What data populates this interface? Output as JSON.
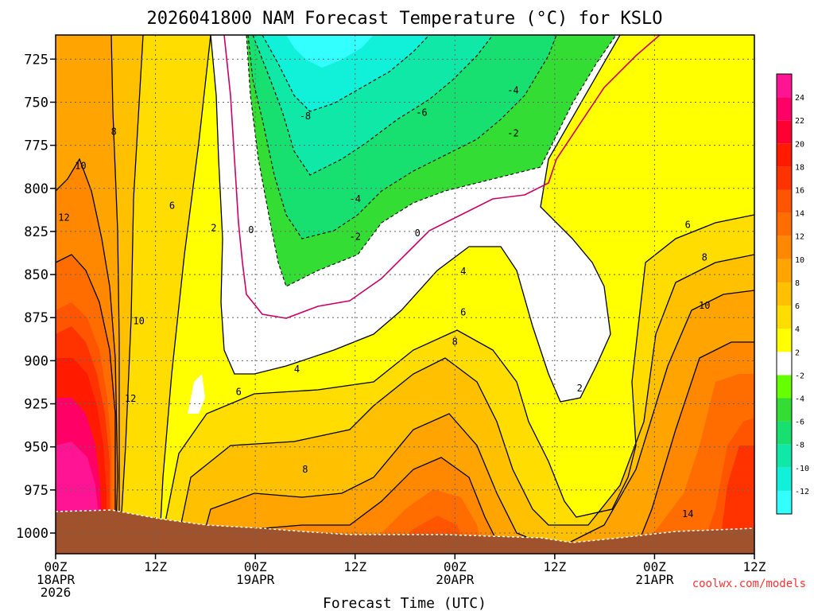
{
  "chart_data": {
    "type": "heatmap",
    "title": "2026041800 NAM Forecast Temperature (°C) for KSLO",
    "xlabel": "Forecast Time (UTC)",
    "ylabel": "",
    "y_ticks": [
      725,
      750,
      775,
      800,
      825,
      850,
      875,
      900,
      925,
      950,
      975,
      1000
    ],
    "ylim": [
      1012,
      711
    ],
    "xlim_hours": [
      0,
      84
    ],
    "x_ticks": [
      {
        "hour": 0,
        "lines": [
          "00Z",
          "18APR",
          "2026"
        ]
      },
      {
        "hour": 12,
        "lines": [
          "12Z"
        ]
      },
      {
        "hour": 24,
        "lines": [
          "00Z",
          "19APR"
        ]
      },
      {
        "hour": 36,
        "lines": [
          "12Z"
        ]
      },
      {
        "hour": 48,
        "lines": [
          "00Z",
          "20APR"
        ]
      },
      {
        "hour": 60,
        "lines": [
          "12Z"
        ]
      },
      {
        "hour": 72,
        "lines": [
          "00Z",
          "21APR"
        ]
      },
      {
        "hour": 84,
        "lines": [
          "12Z"
        ]
      }
    ],
    "colorbar": {
      "levels": [
        -12,
        -10,
        -8,
        -6,
        -4,
        -2,
        2,
        4,
        6,
        8,
        10,
        12,
        14,
        16,
        18,
        20,
        22,
        24
      ],
      "colors": [
        "#33ffff",
        "#11f0d8",
        "#10e8a8",
        "#18e070",
        "#33dd33",
        "#66ff00",
        "#ffffff",
        "#ffff00",
        "#ffdd00",
        "#ffc000",
        "#ffa400",
        "#ff8800",
        "#ff6d00",
        "#ff5500",
        "#ff3300",
        "#ff1a00",
        "#ff0033",
        "#ff0066",
        "#ff1493"
      ]
    },
    "contour_labels": [
      {
        "text": "-8",
        "hour": 30,
        "p": 758
      },
      {
        "text": "-6",
        "hour": 44,
        "p": 756
      },
      {
        "text": "-4",
        "hour": 55,
        "p": 743
      },
      {
        "text": "-2",
        "hour": 55,
        "p": 768
      },
      {
        "text": "-4",
        "hour": 36,
        "p": 806
      },
      {
        "text": "-2",
        "hour": 36,
        "p": 828
      },
      {
        "text": "0",
        "hour": 23.5,
        "p": 824
      },
      {
        "text": "0",
        "hour": 43.5,
        "p": 826
      },
      {
        "text": "2",
        "hour": 19,
        "p": 823
      },
      {
        "text": "2",
        "hour": 63,
        "p": 916
      },
      {
        "text": "4",
        "hour": 29,
        "p": 905
      },
      {
        "text": "4",
        "hour": 49,
        "p": 848
      },
      {
        "text": "6",
        "hour": 14,
        "p": 810
      },
      {
        "text": "6",
        "hour": 22,
        "p": 918
      },
      {
        "text": "6",
        "hour": 49,
        "p": 872
      },
      {
        "text": "6",
        "hour": 76,
        "p": 821
      },
      {
        "text": "8",
        "hour": 7,
        "p": 767
      },
      {
        "text": "8",
        "hour": 30,
        "p": 963
      },
      {
        "text": "8",
        "hour": 48,
        "p": 889
      },
      {
        "text": "8",
        "hour": 78,
        "p": 840
      },
      {
        "text": "10",
        "hour": 3,
        "p": 787
      },
      {
        "text": "10",
        "hour": 10,
        "p": 877
      },
      {
        "text": "10",
        "hour": 78,
        "p": 868
      },
      {
        "text": "12",
        "hour": 1,
        "p": 817
      },
      {
        "text": "12",
        "hour": 9,
        "p": 922
      },
      {
        "text": "14",
        "hour": 76,
        "p": 989
      }
    ],
    "grid": true
  },
  "credit": "coolwx.com/models"
}
